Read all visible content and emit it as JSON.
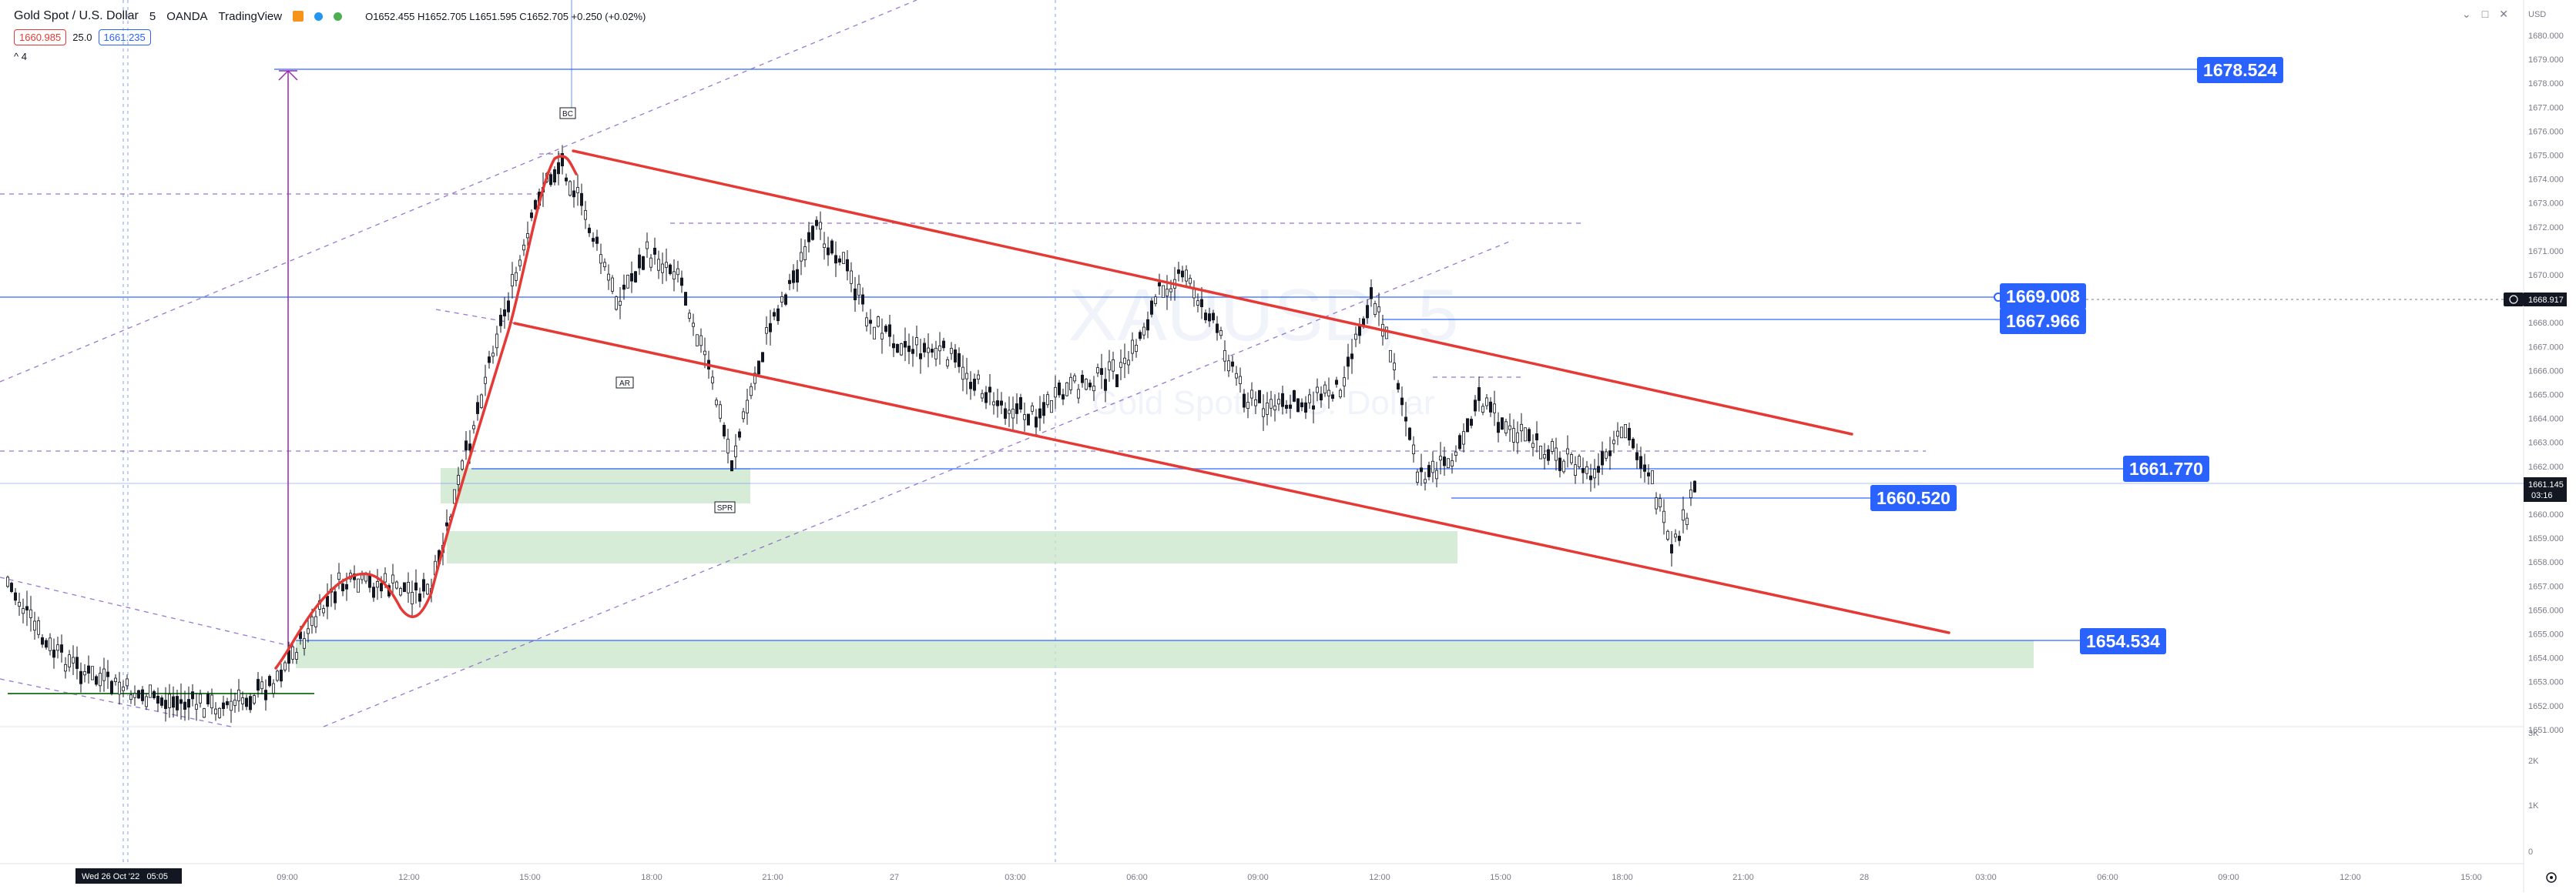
{
  "header": {
    "symbol_label": "Gold Spot / U.S. Dollar",
    "interval": "5",
    "broker": "OANDA",
    "platform": "TradingView",
    "ohlc": "O1652.455 H1652.705 L1651.595 C1652.705 +0.250 (+0.02%)",
    "sell_price": "1660.985",
    "spread": "25.0",
    "buy_price": "1661.235",
    "indicators_toggle": "^ 4"
  },
  "watermark": {
    "symbol": "XAUUSD, 5",
    "name": "Gold Spot / U.S. Dollar"
  },
  "colors": {
    "candle": "#131722",
    "channel": "#e53935",
    "hline": "#2962ff",
    "label_bg": "#2962ff",
    "zone": "#c8e6c9",
    "dashed_guide": "#7e57c2",
    "arrow": "#9c27b0",
    "sell": "#e53935",
    "buy": "#2962ff",
    "last_price_bg": "#131722"
  },
  "price_axis": {
    "top_tick": "USD",
    "ticks": [
      "1680.000",
      "1679.000",
      "1678.000",
      "1677.000",
      "1676.000",
      "1675.000",
      "1674.000",
      "1673.000",
      "1672.000",
      "1671.000",
      "1670.000",
      "1669.000",
      "1668.000",
      "1667.000",
      "1666.000",
      "1665.000",
      "1664.000",
      "1663.000",
      "1662.000",
      "1661.000",
      "1660.000",
      "1659.000",
      "1658.000",
      "1657.000",
      "1656.000",
      "1655.000",
      "1654.000",
      "1653.000",
      "1652.000",
      "1651.000"
    ],
    "current_price": "1661.145",
    "countdown": "03:16",
    "crosshair_price": "1668.917",
    "volume_ticks": [
      "3K",
      "2K",
      "1K",
      "0"
    ]
  },
  "time_axis": {
    "labels": [
      "09:00",
      "12:00",
      "15:00",
      "18:00",
      "21:00",
      "27",
      "03:00",
      "06:00",
      "09:00",
      "12:00",
      "15:00",
      "18:00",
      "21:00",
      "28",
      "03:00",
      "06:00",
      "09:00",
      "12:00",
      "15:00"
    ],
    "cursor_label": "Wed 26 Oct '22   05:05"
  },
  "levels": {
    "l1678": "1678.524",
    "l1669": "1669.008",
    "l1667": "1667.966",
    "l1661": "1661.770",
    "l1660": "1660.520",
    "l1654": "1654.534"
  },
  "annotations": {
    "bc": "BC",
    "ar": "AR",
    "sos": "SPR"
  }
}
